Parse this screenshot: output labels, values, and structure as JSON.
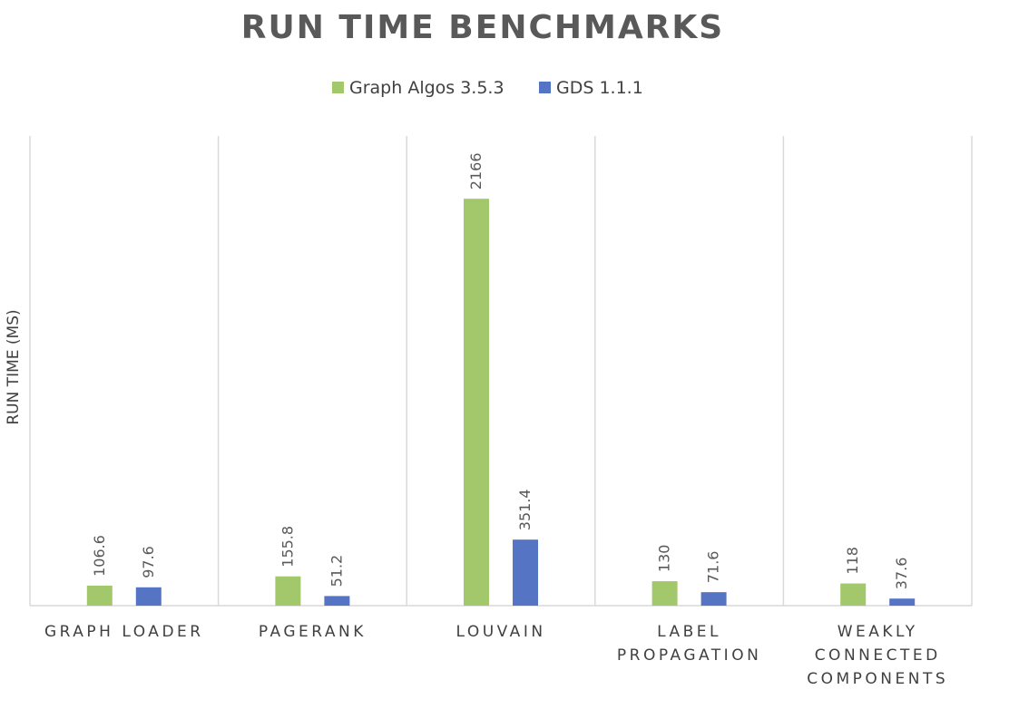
{
  "chart_data": {
    "type": "bar",
    "title": "RUN TIME BENCHMARKS",
    "ylabel": "RUN TIME (MS)",
    "xlabel": "",
    "categories": [
      [
        "GRAPH LOADER"
      ],
      [
        "PAGERANK"
      ],
      [
        "LOUVAIN"
      ],
      [
        "LABEL",
        "PROPAGATION"
      ],
      [
        "WEAKLY",
        "CONNECTED",
        "COMPONENTS"
      ]
    ],
    "series": [
      {
        "name": "Graph Algos 3.5.3",
        "color": "#a3c86c",
        "values": [
          106.6,
          155.8,
          2166,
          130,
          118
        ],
        "labels": [
          "106.6",
          "155.8",
          "2166",
          "130",
          "118"
        ]
      },
      {
        "name": "GDS 1.1.1",
        "color": "#5574c3",
        "values": [
          97.6,
          51.2,
          351.4,
          71.6,
          37.6
        ],
        "labels": [
          "97.6",
          "51.2",
          "351.4",
          "71.6",
          "37.6"
        ]
      }
    ],
    "ylim": [
      0,
      2500
    ],
    "grid": "vertical-category-separators",
    "legend_position": "top-center",
    "axis_color": "#d9d9d9"
  }
}
